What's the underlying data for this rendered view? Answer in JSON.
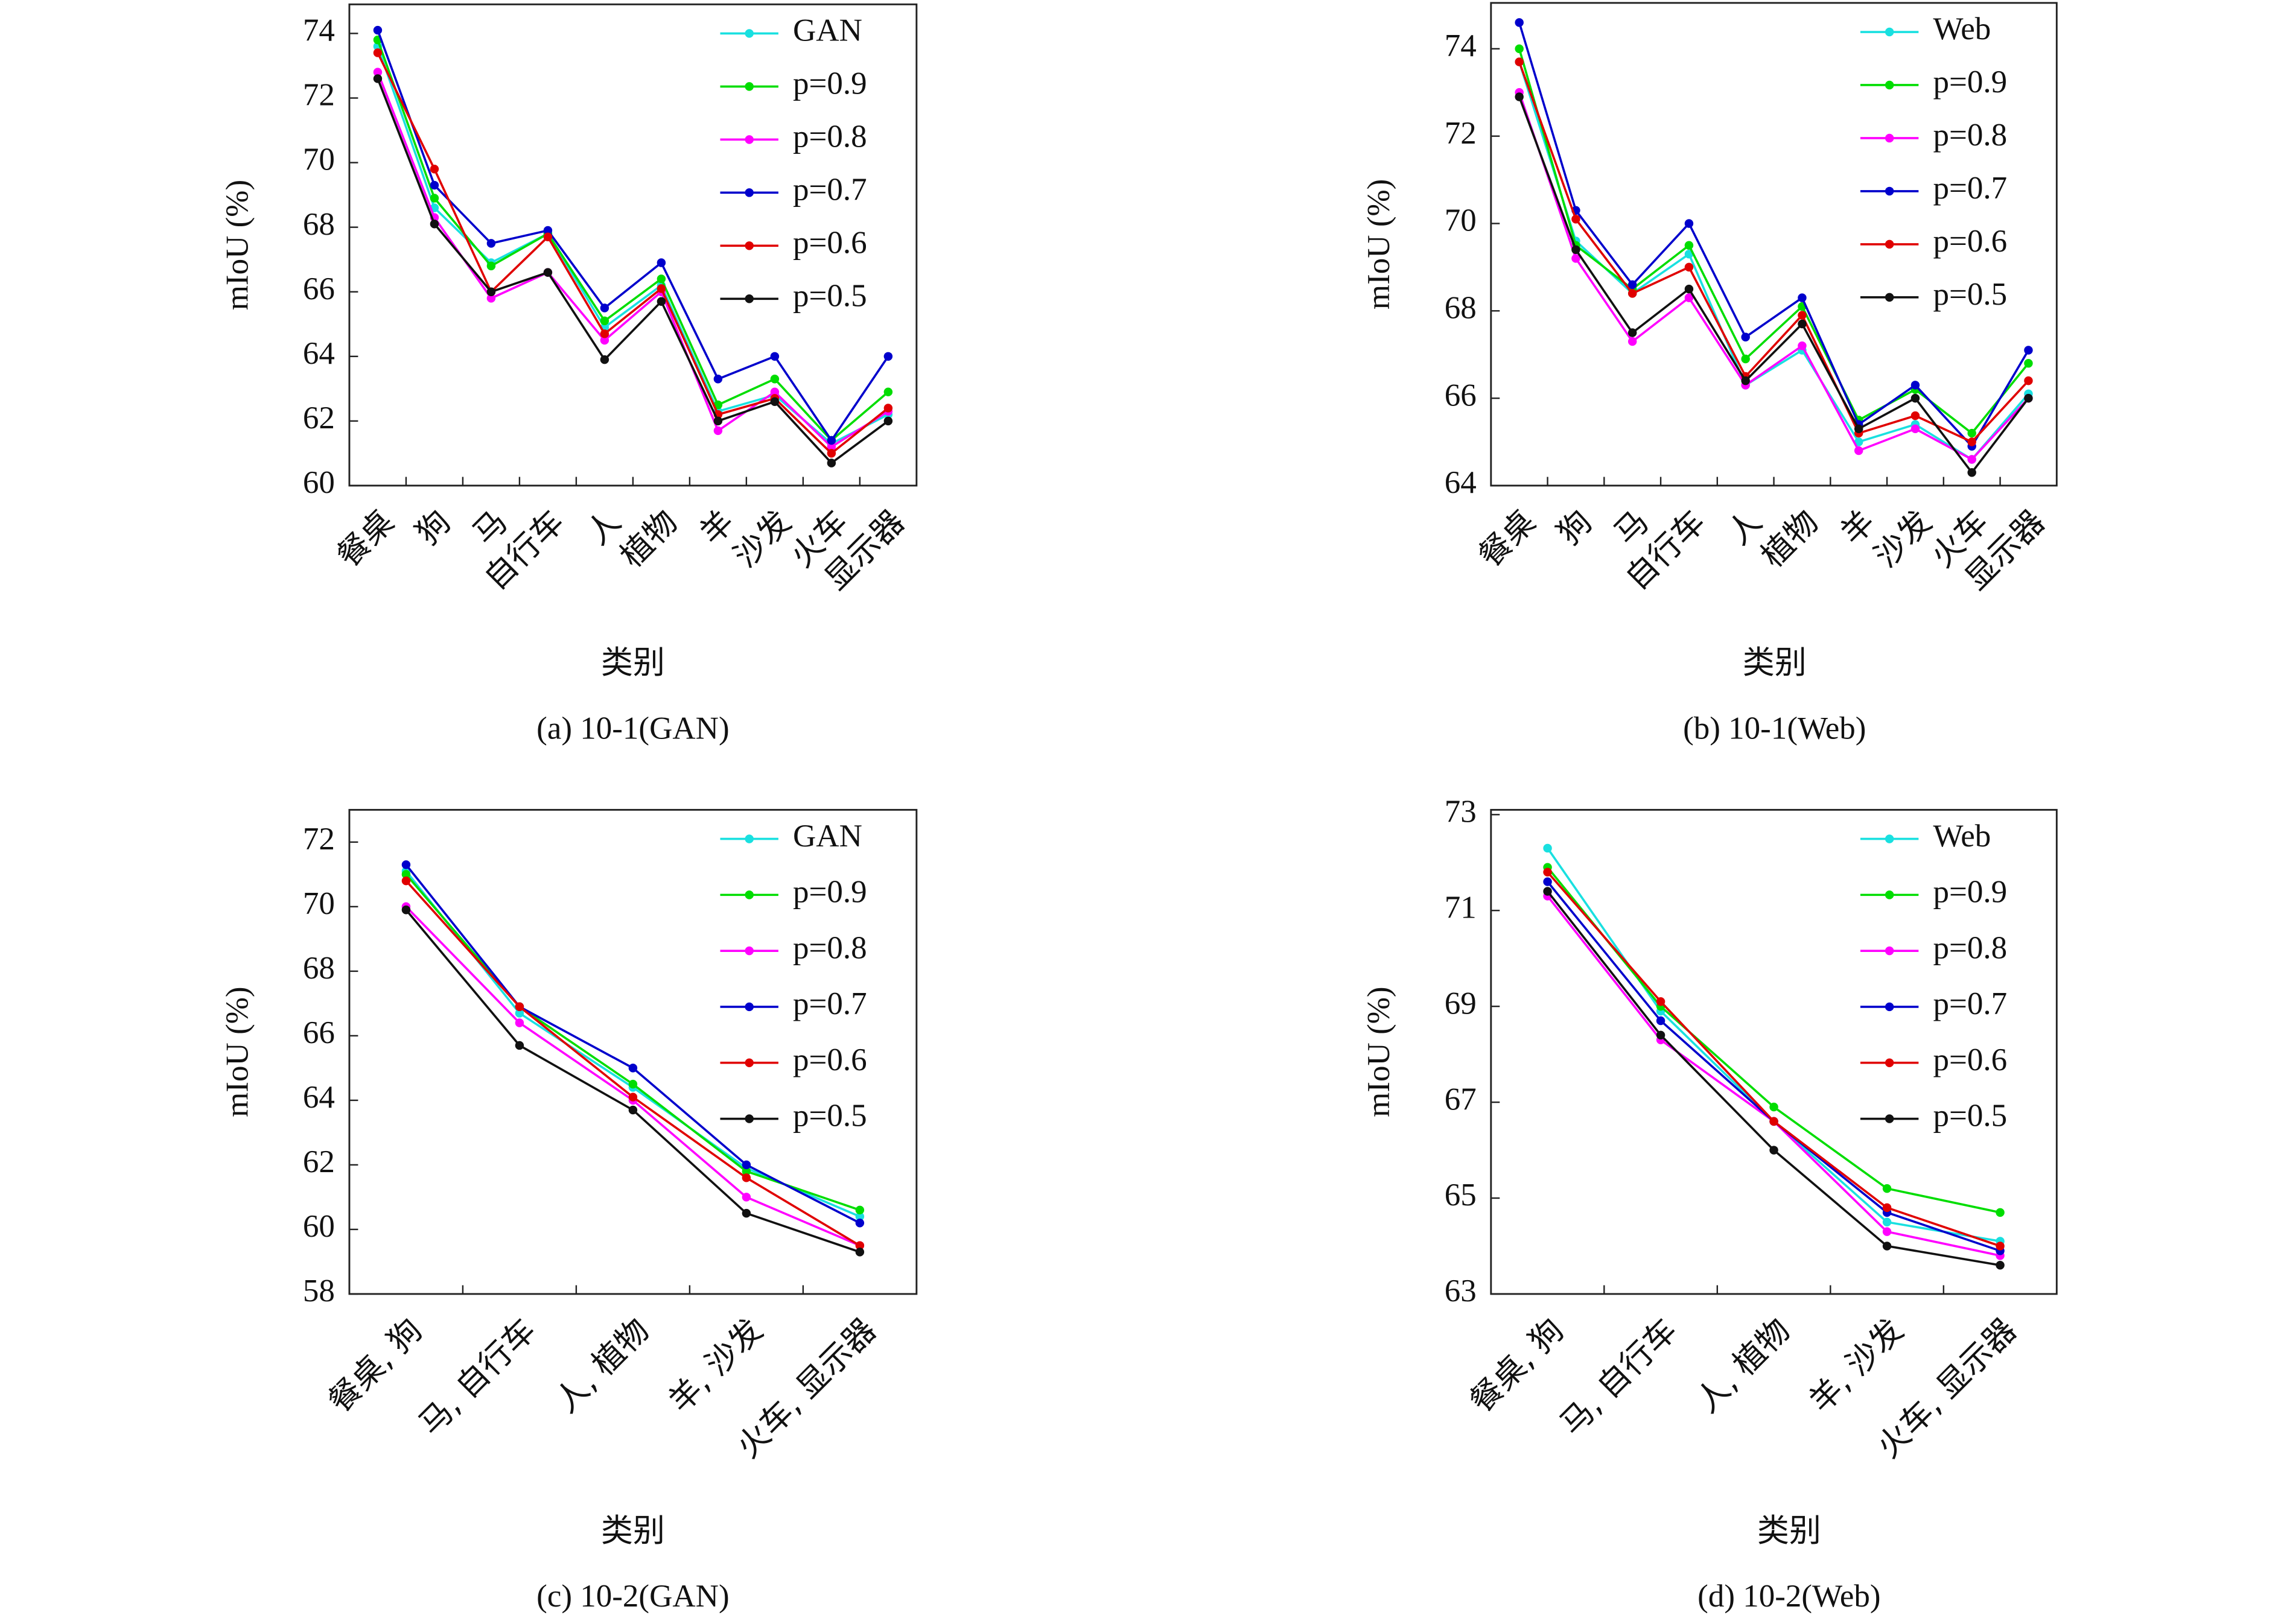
{
  "chart_data": [
    {
      "type": "line",
      "caption": "(a) 10-1(GAN)",
      "xlabel": "类别",
      "ylabel": "mIoU (%)",
      "legend": "upper right",
      "categories": [
        "餐桌",
        "狗",
        "马",
        "自行车",
        "人",
        "植物",
        "羊",
        "沙发",
        "火车",
        "显示器"
      ],
      "ylim": [
        60,
        74.9
      ],
      "yticks": [
        60,
        62,
        64,
        66,
        68,
        70,
        72,
        74
      ],
      "series": [
        {
          "name": "GAN",
          "color": "#19e0e0",
          "values": [
            73.6,
            68.6,
            66.9,
            67.8,
            64.9,
            66.2,
            62.3,
            62.8,
            61.3,
            62.2
          ]
        },
        {
          "name": "p=0.9",
          "color": "#00dd00",
          "values": [
            73.8,
            68.9,
            66.8,
            67.8,
            65.1,
            66.4,
            62.5,
            63.3,
            61.4,
            62.9
          ]
        },
        {
          "name": "p=0.8",
          "color": "#ff00ff",
          "values": [
            72.8,
            68.3,
            65.8,
            66.6,
            64.5,
            66.0,
            61.7,
            62.9,
            61.2,
            62.3
          ]
        },
        {
          "name": "p=0.7",
          "color": "#0000cc",
          "values": [
            74.1,
            69.3,
            67.5,
            67.9,
            65.5,
            66.9,
            63.3,
            64.0,
            61.4,
            64.0
          ]
        },
        {
          "name": "p=0.6",
          "color": "#e00000",
          "values": [
            73.4,
            69.8,
            66.0,
            67.7,
            64.7,
            66.1,
            62.2,
            62.7,
            61.0,
            62.4
          ]
        },
        {
          "name": "p=0.5",
          "color": "#111111",
          "values": [
            72.6,
            68.1,
            66.0,
            66.6,
            63.9,
            65.7,
            62.0,
            62.6,
            60.7,
            62.0
          ]
        }
      ]
    },
    {
      "type": "line",
      "caption": "(b) 10-1(Web)",
      "xlabel": "类别",
      "ylabel": "mIoU (%)",
      "legend": "upper right",
      "categories": [
        "餐桌",
        "狗",
        "马",
        "自行车",
        "人",
        "植物",
        "羊",
        "沙发",
        "火车",
        "显示器"
      ],
      "ylim": [
        64,
        75.05
      ],
      "yticks": [
        64,
        66,
        68,
        70,
        72,
        74
      ],
      "series": [
        {
          "name": "Web",
          "color": "#19e0e0",
          "values": [
            73.7,
            69.6,
            68.4,
            69.3,
            66.3,
            67.1,
            65.0,
            65.4,
            64.6,
            66.1
          ]
        },
        {
          "name": "p=0.9",
          "color": "#00dd00",
          "values": [
            74.0,
            69.5,
            68.5,
            69.5,
            66.9,
            68.1,
            65.5,
            66.2,
            65.2,
            66.8
          ]
        },
        {
          "name": "p=0.8",
          "color": "#ff00ff",
          "values": [
            73.0,
            69.2,
            67.3,
            68.3,
            66.3,
            67.2,
            64.8,
            65.3,
            64.6,
            66.0
          ]
        },
        {
          "name": "p=0.7",
          "color": "#0000cc",
          "values": [
            74.6,
            70.3,
            68.6,
            70.0,
            67.4,
            68.3,
            65.4,
            66.3,
            64.9,
            67.1
          ]
        },
        {
          "name": "p=0.6",
          "color": "#e00000",
          "values": [
            73.7,
            70.1,
            68.4,
            69.0,
            66.5,
            67.9,
            65.2,
            65.6,
            65.0,
            66.4
          ]
        },
        {
          "name": "p=0.5",
          "color": "#111111",
          "values": [
            72.9,
            69.4,
            67.5,
            68.5,
            66.4,
            67.7,
            65.3,
            66.0,
            64.3,
            66.0
          ]
        }
      ]
    },
    {
      "type": "line",
      "caption": "(c) 10-2(GAN)",
      "xlabel": "类别",
      "ylabel": "mIoU (%)",
      "legend": "upper right",
      "categories": [
        "餐桌, 狗",
        "马, 自行车",
        "人, 植物",
        "羊, 沙发",
        "火车, 显示器"
      ],
      "ylim": [
        58,
        73.0
      ],
      "yticks": [
        58,
        60,
        62,
        64,
        66,
        68,
        70,
        72
      ],
      "series": [
        {
          "name": "GAN",
          "color": "#19e0e0",
          "values": [
            71.1,
            66.7,
            64.4,
            61.9,
            60.4
          ]
        },
        {
          "name": "p=0.9",
          "color": "#00dd00",
          "values": [
            71.0,
            66.9,
            64.5,
            61.8,
            60.6
          ]
        },
        {
          "name": "p=0.8",
          "color": "#ff00ff",
          "values": [
            70.0,
            66.4,
            64.0,
            61.0,
            59.5
          ]
        },
        {
          "name": "p=0.7",
          "color": "#0000cc",
          "values": [
            71.3,
            66.9,
            65.0,
            62.0,
            60.2
          ]
        },
        {
          "name": "p=0.6",
          "color": "#e00000",
          "values": [
            70.8,
            66.9,
            64.1,
            61.6,
            59.5
          ]
        },
        {
          "name": "p=0.5",
          "color": "#111111",
          "values": [
            69.9,
            65.7,
            63.7,
            60.5,
            59.3
          ]
        }
      ]
    },
    {
      "type": "line",
      "caption": "(d) 10-2(Web)",
      "xlabel": "类别",
      "ylabel": "mIoU (%)",
      "legend": "upper right",
      "categories": [
        "餐桌, 狗",
        "马, 自行车",
        "人, 植物",
        "羊, 沙发",
        "火车, 显示器"
      ],
      "ylim": [
        63,
        73.1
      ],
      "yticks": [
        63,
        65,
        67,
        69,
        71,
        73
      ],
      "series": [
        {
          "name": "Web",
          "color": "#19e0e0",
          "values": [
            72.3,
            68.9,
            66.6,
            64.5,
            64.1
          ]
        },
        {
          "name": "p=0.9",
          "color": "#00dd00",
          "values": [
            71.9,
            69.0,
            66.9,
            65.2,
            64.7
          ]
        },
        {
          "name": "p=0.8",
          "color": "#ff00ff",
          "values": [
            71.3,
            68.3,
            66.6,
            64.3,
            63.8
          ]
        },
        {
          "name": "p=0.7",
          "color": "#0000cc",
          "values": [
            71.6,
            68.7,
            66.6,
            64.7,
            63.9
          ]
        },
        {
          "name": "p=0.6",
          "color": "#e00000",
          "values": [
            71.8,
            69.1,
            66.6,
            64.8,
            64.0
          ]
        },
        {
          "name": "p=0.5",
          "color": "#111111",
          "values": [
            71.4,
            68.4,
            66.0,
            64.0,
            63.6
          ]
        }
      ]
    }
  ]
}
